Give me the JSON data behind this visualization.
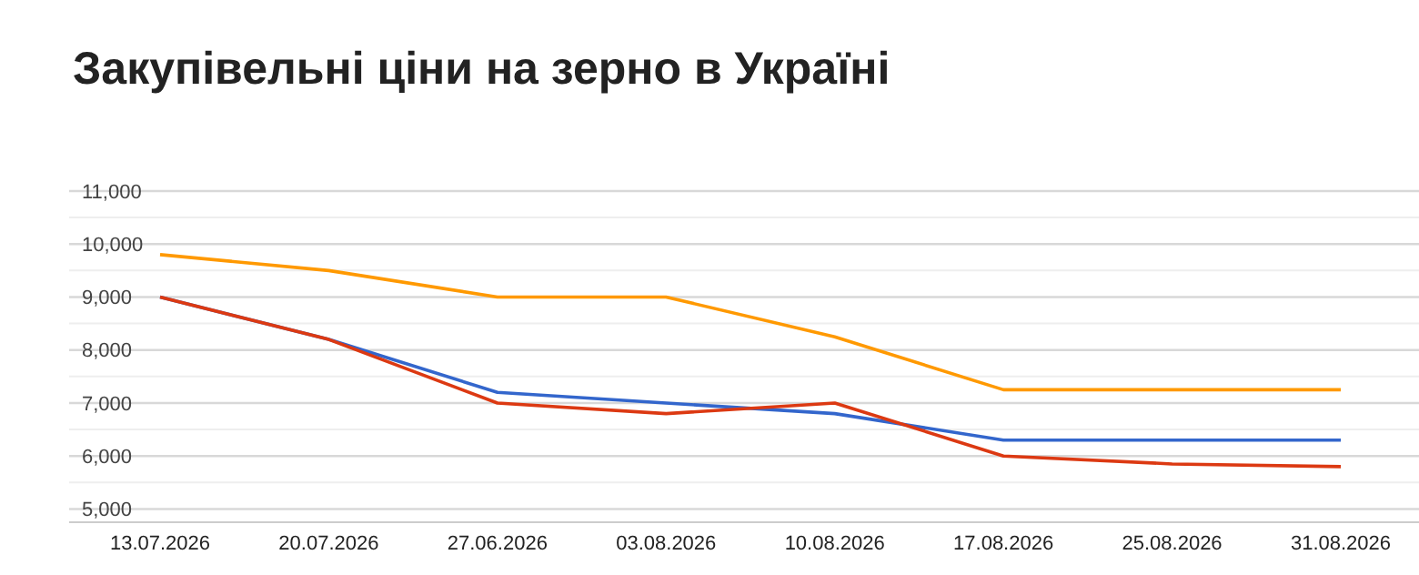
{
  "chart_data": {
    "type": "line",
    "title": "Закупівельні ціни на зерно в Україні",
    "categories": [
      "13.07.2026",
      "20.07.2026",
      "27.06.2026",
      "03.08.2026",
      "10.08.2026",
      "17.08.2026",
      "25.08.2026",
      "31.08.2026"
    ],
    "series": [
      {
        "color": "#ff9900",
        "values": [
          9800,
          9500,
          9000,
          9000,
          8250,
          7250,
          7250,
          7250
        ]
      },
      {
        "color": "#3366cc",
        "values": [
          9000,
          8200,
          7200,
          7000,
          6800,
          6300,
          6300,
          6300
        ]
      },
      {
        "color": "#dc3912",
        "values": [
          9000,
          8200,
          7000,
          6800,
          7000,
          6000,
          5850,
          5800
        ]
      }
    ],
    "ylim": [
      4750,
      11000
    ],
    "yticks": [
      {
        "value": 5000,
        "label": "5,000"
      },
      {
        "value": 6000,
        "label": "6,000"
      },
      {
        "value": 7000,
        "label": "7,000"
      },
      {
        "value": 8000,
        "label": "8,000"
      },
      {
        "value": 9000,
        "label": "9,000"
      },
      {
        "value": 10000,
        "label": "10,000"
      },
      {
        "value": 11000,
        "label": "11,000"
      }
    ],
    "grid": true,
    "marker": "none",
    "line_style": "solid"
  }
}
